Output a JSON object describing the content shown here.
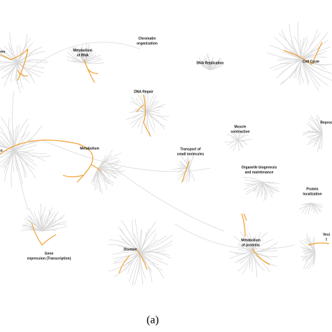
{
  "nodes": [
    {
      "lines": [
        "tem"
      ]
    },
    {
      "lines": [
        "Metabolism",
        "of RNA"
      ]
    },
    {
      "lines": [
        "Chromatin",
        "organization"
      ]
    },
    {
      "lines": [
        "DNA Replication"
      ]
    },
    {
      "lines": [
        "Cell Cycle"
      ]
    },
    {
      "lines": [
        "DNA Repair"
      ]
    },
    {
      "lines": [
        "Muscle",
        "contraction"
      ]
    },
    {
      "lines": [
        "Reproc"
      ]
    },
    {
      "lines": [
        "n"
      ]
    },
    {
      "lines": [
        "Metabolism"
      ]
    },
    {
      "lines": [
        "Transport of",
        "small molecules"
      ]
    },
    {
      "lines": [
        "Organelle biogenesis",
        "and maintenance"
      ]
    },
    {
      "lines": [
        "Protein",
        "localization"
      ]
    },
    {
      "lines": [
        "Gene",
        "expression (Transcription)"
      ]
    },
    {
      "lines": [
        "Disease"
      ]
    },
    {
      "lines": [
        "Metabolism",
        "of proteins"
      ]
    },
    {
      "lines": [
        "Vesi",
        "t"
      ]
    }
  ],
  "caption": "(a)"
}
